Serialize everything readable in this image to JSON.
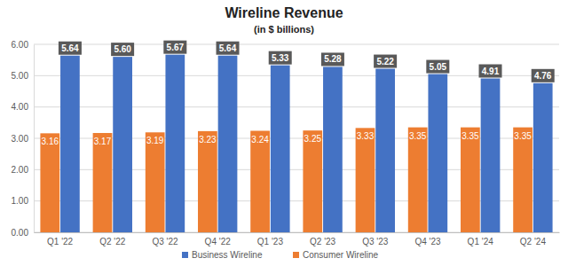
{
  "chart_data": {
    "type": "bar",
    "title": "Wireline Revenue",
    "subtitle": "(in $ billions)",
    "categories": [
      "Q1 '22",
      "Q2 '22",
      "Q3 '22",
      "Q4 '22",
      "Q1 '23",
      "Q2 '23",
      "Q3 '23",
      "Q4 '23",
      "Q1 '24",
      "Q2 '24"
    ],
    "series": [
      {
        "name": "Business Wireline",
        "color": "#4472c4",
        "values": [
          5.64,
          5.6,
          5.67,
          5.64,
          5.33,
          5.28,
          5.22,
          5.05,
          4.91,
          4.76
        ],
        "value_labels": [
          "5.64",
          "5.60",
          "5.67",
          "5.64",
          "5.33",
          "5.28",
          "5.22",
          "5.05",
          "4.91",
          "4.76"
        ]
      },
      {
        "name": "Consumer Wireline",
        "color": "#ed7d31",
        "values": [
          3.16,
          3.17,
          3.19,
          3.23,
          3.24,
          3.25,
          3.33,
          3.35,
          3.35,
          3.35
        ],
        "value_labels": [
          "3.16",
          "3.17",
          "3.19",
          "3.23",
          "3.24",
          "3.25",
          "3.33",
          "3.35",
          "3.35",
          "3.35"
        ]
      }
    ],
    "ylim": [
      0,
      6
    ],
    "yticks": [
      {
        "value": 0,
        "label": "0.00"
      },
      {
        "value": 1,
        "label": "1.00"
      },
      {
        "value": 2,
        "label": "2.00"
      },
      {
        "value": 3,
        "label": "3.00"
      },
      {
        "value": 4,
        "label": "4.00"
      },
      {
        "value": 5,
        "label": "5.00"
      },
      {
        "value": 6,
        "label": "6.00"
      }
    ],
    "grid": true,
    "data_labels": true,
    "legend": "bottom"
  }
}
